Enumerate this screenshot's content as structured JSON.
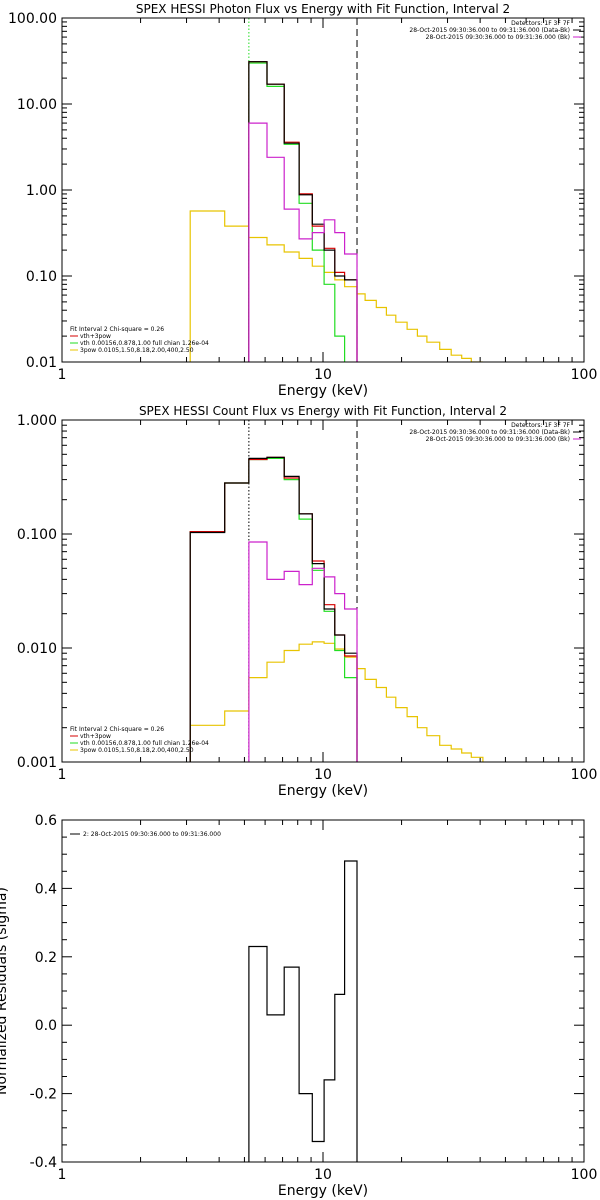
{
  "colors": {
    "total": "#000000",
    "vth_3pow": "#d40000",
    "vth": "#22dd22",
    "pow": "#e8c400",
    "bk": "#cc22cc",
    "background": "#ffffff"
  },
  "chart_data": [
    {
      "type": "line",
      "title": "SPEX HESSI Photon Flux vs Energy with Fit Function, Interval 2",
      "xlabel": "Energy (keV)",
      "ylabel": "",
      "xscale": "log",
      "yscale": "log",
      "xlim": [
        1,
        100
      ],
      "ylim": [
        0.01,
        100
      ],
      "xticks": [
        {
          "v": 1,
          "label": "1"
        },
        {
          "v": 10,
          "label": "10"
        },
        {
          "v": 100,
          "label": "100"
        }
      ],
      "yticks": [
        {
          "v": 0.01,
          "label": "0.01"
        },
        {
          "v": 0.1,
          "label": "0.10"
        },
        {
          "v": 1,
          "label": "1.00"
        },
        {
          "v": 10,
          "label": "10.00"
        },
        {
          "v": 100,
          "label": "100.00"
        }
      ],
      "vlines": [
        {
          "x": 5.2,
          "style": "dotted",
          "color": "#22dd22"
        },
        {
          "x": 13.5,
          "style": "dashed",
          "color": "#000000"
        }
      ],
      "legend_top": [
        "Detectors: 1F 3F 7F",
        "28-Oct-2015 09:30:36.000 to 09:31:36.000 (Data-Bk)",
        "28-Oct-2015 09:30:36.000 to 09:31:36.000 (Bk)"
      ],
      "legend_bottom": [
        "Fit Interval 2   Chi-square = 0.26",
        "vth+3pow",
        "vth 0.00156,0.878,1.00  full chian 1.26e-04",
        "3pow 0.0105,1.50,8.18,2.00,400,2.50"
      ],
      "edges": [
        3.1,
        4.2,
        5.2,
        6.1,
        7.1,
        8.1,
        9.1,
        10.1,
        11.1,
        12.1,
        13.5
      ],
      "series": [
        {
          "name": "3pow",
          "color": "#e8c400",
          "step": true,
          "edges": [
            3.1,
            4.2,
            5.2,
            6.1,
            7.1,
            8.1,
            9.1,
            10.1,
            11.1,
            12.1,
            13.5,
            14.5,
            16,
            17.5,
            19,
            21,
            23,
            25,
            28,
            31,
            34,
            37,
            41
          ],
          "values": [
            0.57,
            0.38,
            0.28,
            0.23,
            0.19,
            0.16,
            0.13,
            0.11,
            0.09,
            0.075,
            0.062,
            0.052,
            0.043,
            0.035,
            0.029,
            0.024,
            0.02,
            0.017,
            0.014,
            0.012,
            0.011,
            0.01
          ]
        },
        {
          "name": "vth",
          "color": "#22dd22",
          "step": true,
          "edges": [
            5.2,
            6.1,
            7.1,
            8.1,
            9.1,
            10.1,
            11.1,
            12.1
          ],
          "values": [
            30,
            16,
            3.4,
            0.7,
            0.2,
            0.08,
            0.02
          ]
        },
        {
          "name": "vth+3pow",
          "color": "#d40000",
          "step": true,
          "edges": [
            5.2,
            6.1,
            7.1,
            8.1,
            9.1,
            10.1,
            11.1,
            12.1,
            13.5
          ],
          "values": [
            31,
            17,
            3.6,
            0.9,
            0.38,
            0.21,
            0.11,
            0.09
          ]
        },
        {
          "name": "Data-Bk",
          "color": "#000000",
          "step": true,
          "edges": [
            5.2,
            6.1,
            7.1,
            8.1,
            9.1,
            10.1,
            11.1,
            12.1,
            13.5
          ],
          "values": [
            31,
            17,
            3.5,
            0.88,
            0.4,
            0.2,
            0.1,
            0.09
          ]
        },
        {
          "name": "Bk",
          "color": "#cc22cc",
          "step": true,
          "edges": [
            5.2,
            6.1,
            7.1,
            8.1,
            9.1,
            10.1,
            11.1,
            12.1,
            13.5
          ],
          "values": [
            6,
            2.4,
            0.6,
            0.27,
            0.32,
            0.45,
            0.32,
            0.18
          ]
        }
      ]
    },
    {
      "type": "line",
      "title": "SPEX HESSI Count Flux vs Energy with Fit Function, Interval 2",
      "xlabel": "Energy (keV)",
      "ylabel": "",
      "xscale": "log",
      "yscale": "log",
      "xlim": [
        1,
        100
      ],
      "ylim": [
        0.001,
        1
      ],
      "xticks": [
        {
          "v": 1,
          "label": "1"
        },
        {
          "v": 10,
          "label": "10"
        },
        {
          "v": 100,
          "label": "100"
        }
      ],
      "yticks": [
        {
          "v": 0.001,
          "label": "0.001"
        },
        {
          "v": 0.01,
          "label": "0.010"
        },
        {
          "v": 0.1,
          "label": "0.100"
        },
        {
          "v": 1,
          "label": "1.000"
        }
      ],
      "vlines": [
        {
          "x": 5.2,
          "style": "dotted",
          "color": "#000000"
        },
        {
          "x": 13.5,
          "style": "dashed",
          "color": "#000000"
        }
      ],
      "legend_top": [
        "Detectors: 1F 3F 7F",
        "28-Oct-2015 09:30:36.000 to 09:31:36.000 (Data-Bk)",
        "28-Oct-2015 09:30:36.000 to 09:31:36.000 (Bk)"
      ],
      "legend_bottom": [
        "Fit Interval 2   Chi-square = 0.26",
        "vth+3pow",
        "vth 0.00156,0.878,1.00  full chian 1.26e-04",
        "3pow 0.0105,1.50,8.18,2.00,400,2.50"
      ],
      "series": [
        {
          "name": "3pow",
          "color": "#e8c400",
          "step": true,
          "edges": [
            3.1,
            4.2,
            5.2,
            6.1,
            7.1,
            8.1,
            9.1,
            10.1,
            11.1,
            12.1,
            13.5,
            14.5,
            16,
            17.5,
            19,
            21,
            23,
            25,
            28,
            31,
            34,
            37,
            41
          ],
          "values": [
            0.0021,
            0.0028,
            0.0055,
            0.0075,
            0.0095,
            0.0108,
            0.0113,
            0.011,
            0.0098,
            0.0083,
            0.0066,
            0.0053,
            0.0045,
            0.0037,
            0.003,
            0.0025,
            0.002,
            0.0017,
            0.0014,
            0.0013,
            0.0012,
            0.0011
          ]
        },
        {
          "name": "vth",
          "color": "#22dd22",
          "step": true,
          "edges": [
            3.1,
            4.2,
            5.2,
            6.1,
            7.1,
            8.1,
            9.1,
            10.1,
            11.1,
            12.1,
            13.5
          ],
          "values": [
            0.105,
            0.28,
            0.45,
            0.46,
            0.3,
            0.135,
            0.048,
            0.021,
            0.0095,
            0.0055
          ]
        },
        {
          "name": "vth+3pow",
          "color": "#d40000",
          "step": true,
          "edges": [
            3.1,
            4.2,
            5.2,
            6.1,
            7.1,
            8.1,
            9.1,
            10.1,
            11.1,
            12.1,
            13.5
          ],
          "values": [
            0.105,
            0.28,
            0.45,
            0.47,
            0.31,
            0.15,
            0.058,
            0.024,
            0.013,
            0.0085
          ]
        },
        {
          "name": "Data-Bk",
          "color": "#000000",
          "step": true,
          "edges": [
            3.1,
            4.2,
            5.2,
            6.1,
            7.1,
            8.1,
            9.1,
            10.1,
            11.1,
            12.1,
            13.5
          ],
          "values": [
            0.103,
            0.28,
            0.46,
            0.47,
            0.32,
            0.15,
            0.055,
            0.022,
            0.013,
            0.009
          ]
        },
        {
          "name": "Bk",
          "color": "#cc22cc",
          "step": true,
          "edges": [
            5.2,
            6.1,
            7.1,
            8.1,
            9.1,
            10.1,
            11.1,
            12.1,
            13.5
          ],
          "values": [
            0.085,
            0.04,
            0.047,
            0.036,
            0.05,
            0.042,
            0.03,
            0.022
          ]
        }
      ]
    },
    {
      "type": "line",
      "title": "",
      "xlabel": "Energy (keV)",
      "ylabel": "Normalized Residuals (sigma)",
      "xscale": "log",
      "yscale": "linear",
      "xlim": [
        1,
        100
      ],
      "ylim": [
        -0.4,
        0.6
      ],
      "xticks": [
        {
          "v": 1,
          "label": "1"
        },
        {
          "v": 10,
          "label": "10"
        },
        {
          "v": 100,
          "label": "100"
        }
      ],
      "yticks": [
        {
          "v": -0.4,
          "label": "-0.4"
        },
        {
          "v": -0.2,
          "label": "-0.2"
        },
        {
          "v": 0.0,
          "label": "0.0"
        },
        {
          "v": 0.2,
          "label": "0.2"
        },
        {
          "v": 0.4,
          "label": "0.4"
        },
        {
          "v": 0.6,
          "label": "0.6"
        }
      ],
      "legend_top": [
        "2: 28-Oct-2015 09:30:36.000 to 09:31:36.000"
      ],
      "series": [
        {
          "name": "2: 28-Oct-2015 09:30:36.000 to 09:31:36.000",
          "color": "#000000",
          "step": true,
          "edges": [
            5.2,
            6.1,
            7.1,
            8.1,
            9.1,
            10.1,
            11.1,
            12.1,
            13.5
          ],
          "values": [
            0.23,
            0.03,
            0.17,
            -0.2,
            -0.34,
            -0.16,
            0.09,
            0.48
          ]
        }
      ]
    }
  ]
}
